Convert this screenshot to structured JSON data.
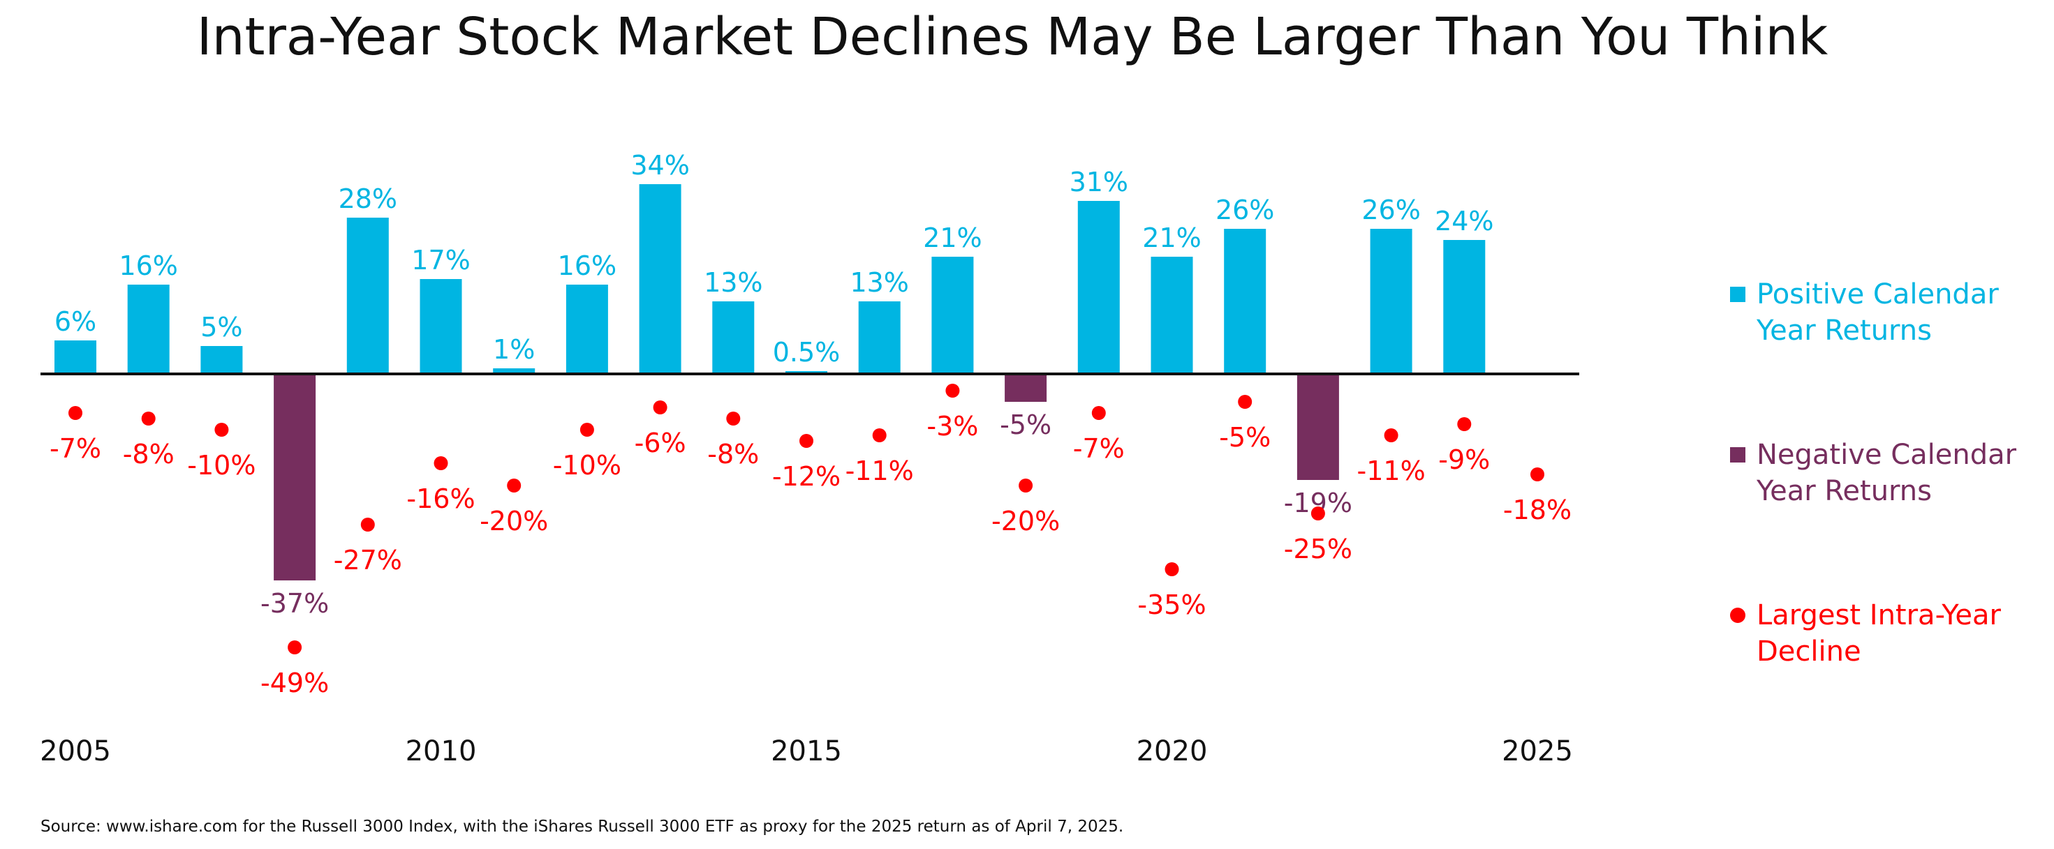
{
  "colors": {
    "positive": "#00B5E2",
    "negative": "#762E5E",
    "decline": "#FF0000",
    "text": "#111111"
  },
  "chart_data": {
    "type": "bar",
    "title": "Intra-Year Stock Market Declines May Be Larger Than You Think",
    "xlabel": "",
    "ylabel": "",
    "ylim": [
      -55,
      40
    ],
    "x_ticks": [
      "2005",
      "2010",
      "2015",
      "2020",
      "2025"
    ],
    "categories": [
      "2005",
      "2006",
      "2007",
      "2008",
      "2009",
      "2010",
      "2011",
      "2012",
      "2013",
      "2014",
      "2015",
      "2016",
      "2017",
      "2018",
      "2019",
      "2020",
      "2021",
      "2022",
      "2023",
      "2024",
      "2025"
    ],
    "series": [
      {
        "name": "Calendar Year Returns",
        "values": [
          6,
          16,
          5,
          -37,
          28,
          17,
          1,
          16,
          34,
          13,
          0.5,
          13,
          21,
          -5,
          31,
          21,
          26,
          -19,
          26,
          24,
          null
        ],
        "labels": [
          "6%",
          "16%",
          "5%",
          "-37%",
          "28%",
          "17%",
          "1%",
          "16%",
          "34%",
          "13%",
          "0.5%",
          "13%",
          "21%",
          "-5%",
          "31%",
          "21%",
          "26%",
          "-19%",
          "26%",
          "24%",
          ""
        ]
      },
      {
        "name": "Largest Intra-Year Decline",
        "values": [
          -7,
          -8,
          -10,
          -49,
          -27,
          -16,
          -20,
          -10,
          -6,
          -8,
          -12,
          -11,
          -3,
          -20,
          -7,
          -35,
          -5,
          -25,
          -11,
          -9,
          -18
        ],
        "labels": [
          "-7%",
          "-8%",
          "-10%",
          "-49%",
          "-27%",
          "-16%",
          "-20%",
          "-10%",
          "-6%",
          "-8%",
          "-12%",
          "-11%",
          "-3%",
          "-20%",
          "-7%",
          "-35%",
          "-5%",
          "-25%",
          "-11%",
          "-9%",
          "-18%"
        ]
      }
    ],
    "legend": {
      "placement": "right",
      "entries": [
        {
          "key": "positive",
          "line1": "Positive Calendar",
          "line2": "Year Returns"
        },
        {
          "key": "negative",
          "line1": "Negative Calendar",
          "line2": "Year Returns"
        },
        {
          "key": "decline",
          "line1": "Largest Intra-Year",
          "line2": "Decline"
        }
      ]
    }
  },
  "source_note": "Source: www.ishare.com for the Russell 3000 Index, with the iShares Russell 3000 ETF as proxy for the 2025 return as of April 7, 2025."
}
